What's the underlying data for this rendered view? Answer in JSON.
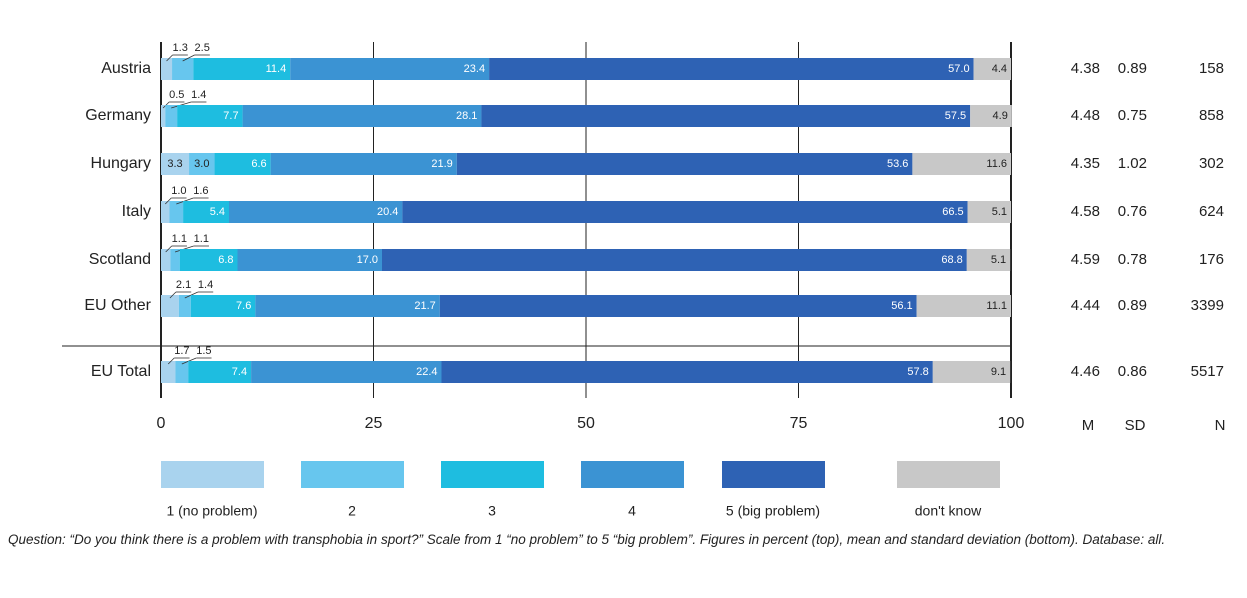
{
  "chart_data": {
    "type": "stacked-bar-horizontal",
    "categories": [
      "Austria",
      "Germany",
      "Hungary",
      "Italy",
      "Scotland",
      "EU Other",
      "EU Total"
    ],
    "series": [
      {
        "name": "1 (no problem)",
        "color": "#a9d3ee",
        "values": [
          1.3,
          0.5,
          3.3,
          1.0,
          1.1,
          2.1,
          1.7
        ],
        "value_labels": [
          "1.3",
          "0.5",
          "3.3",
          "1.0",
          "1.1",
          "2.1",
          "1.7"
        ]
      },
      {
        "name": "2",
        "color": "#67c6ee",
        "values": [
          2.5,
          1.4,
          3.0,
          1.6,
          1.1,
          1.4,
          1.5
        ],
        "value_labels": [
          "2.5",
          "1.4",
          "3.0",
          "1.6",
          "1.1",
          "1.4",
          "1.5"
        ]
      },
      {
        "name": "3",
        "color": "#1ebde0",
        "values": [
          11.4,
          7.7,
          6.6,
          5.4,
          6.8,
          7.6,
          7.4
        ],
        "value_labels": [
          "11.4",
          "7.7",
          "6.6",
          "5.4",
          "6.8",
          "7.6",
          "7.4"
        ]
      },
      {
        "name": "4",
        "color": "#3b93d3",
        "values": [
          23.4,
          28.1,
          21.9,
          20.4,
          17.0,
          21.7,
          22.4
        ],
        "value_labels": [
          "23.4",
          "28.1",
          "21.9",
          "20.4",
          "17.0",
          "21.7",
          "22.4"
        ]
      },
      {
        "name": "5 (big problem)",
        "color": "#2e62b4",
        "values": [
          57.0,
          57.5,
          53.6,
          66.5,
          68.8,
          56.1,
          57.8
        ],
        "value_labels": [
          "57.0",
          "57.5",
          "53.6",
          "66.5",
          "68.8",
          "56.1",
          "57.8"
        ]
      },
      {
        "name": "don't know",
        "color": "#c8c8c8",
        "values": [
          4.4,
          4.9,
          11.6,
          5.1,
          5.1,
          11.1,
          9.1
        ],
        "value_labels": [
          "4.4",
          "4.9",
          "11.6",
          "5.1",
          "5.1",
          "11.1",
          "9.1"
        ]
      }
    ],
    "xlim": [
      0,
      100
    ],
    "xticks": [
      0,
      25,
      50,
      75,
      100
    ],
    "grid": true,
    "stats": [
      {
        "name": "M",
        "values": [
          4.38,
          4.48,
          4.35,
          4.58,
          4.59,
          4.44,
          4.46
        ]
      },
      {
        "name": "SD",
        "values": [
          0.89,
          0.75,
          1.02,
          0.76,
          0.78,
          0.89,
          0.86
        ]
      },
      {
        "name": "N",
        "values": [
          158,
          858,
          302,
          624,
          176,
          3399,
          5517
        ]
      }
    ],
    "footnote": "Question: “Do you think there is a problem with transphobia in sport?” Scale from 1 “no problem” to 5 “big problem”. Figures in percent (top), mean and standard deviation (bottom).  Database: all."
  }
}
